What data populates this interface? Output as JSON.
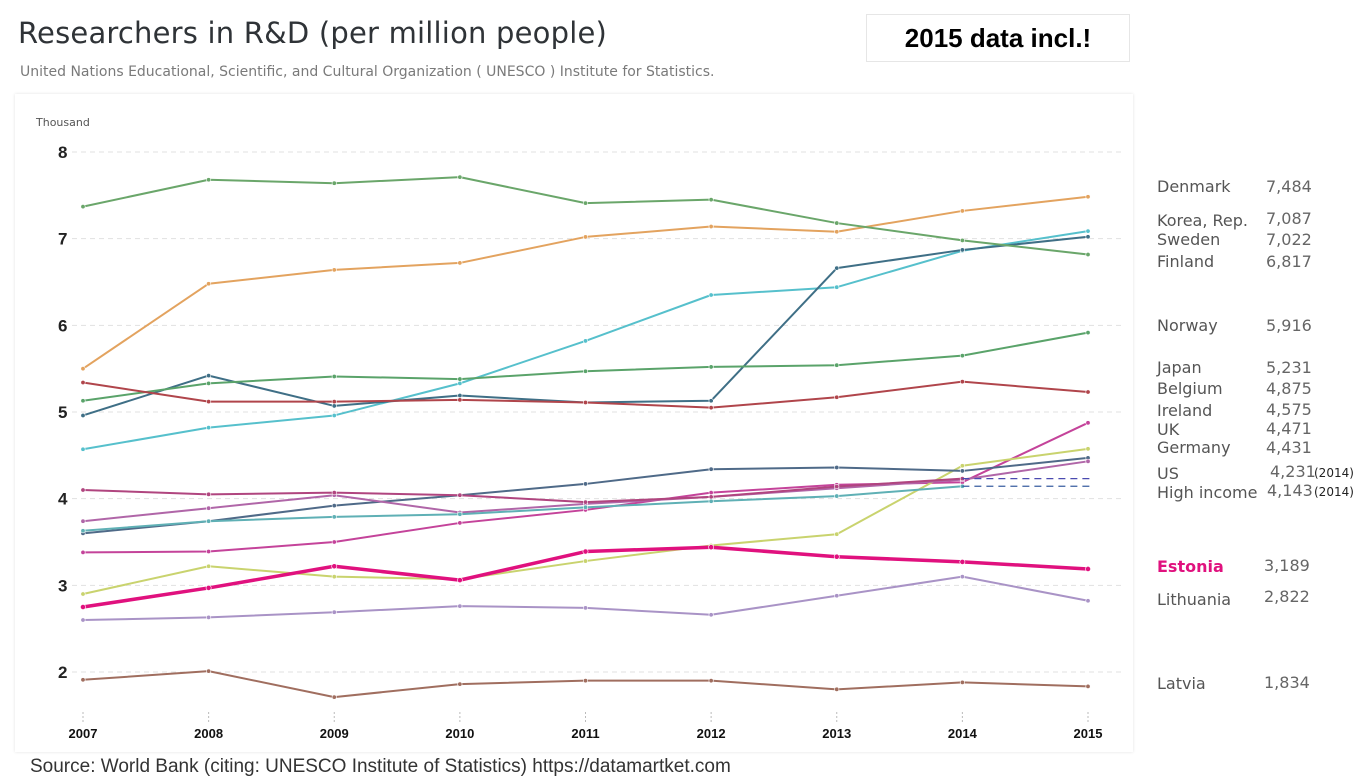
{
  "title": "Researchers in R&D (per million people)",
  "subtitle": "United Nations Educational, Scientific, and Cultural Organization ( UNESCO ) Institute for Statistics.",
  "badge": "2015 data incl.!",
  "source": "Source: World Bank (citing: UNESCO Institute of Statistics)   https://datamartket.com",
  "chart_data": {
    "type": "line",
    "ylabel": "Thousand",
    "x": [
      "2007",
      "2008",
      "2009",
      "2010",
      "2011",
      "2012",
      "2013",
      "2014",
      "2015"
    ],
    "yticks": [
      "2",
      "3",
      "4",
      "5",
      "6",
      "7",
      "8"
    ],
    "ylim": [
      1.6,
      8.2
    ],
    "grid": true,
    "series": [
      {
        "name": "Denmark",
        "label": "7,484",
        "color": "#e3a35f",
        "values": [
          5.5,
          6.48,
          6.64,
          6.72,
          7.02,
          7.14,
          7.08,
          7.32,
          7.484
        ]
      },
      {
        "name": "Korea, Rep.",
        "label": "7,087",
        "color": "#56c0cc",
        "values": [
          4.57,
          4.82,
          4.96,
          5.33,
          5.82,
          6.35,
          6.44,
          6.86,
          7.087
        ]
      },
      {
        "name": "Sweden",
        "label": "7,022",
        "color": "#3f6f86",
        "values": [
          4.96,
          5.42,
          5.07,
          5.19,
          5.11,
          5.13,
          6.66,
          6.87,
          7.022
        ]
      },
      {
        "name": "Finland",
        "label": "6,817",
        "color": "#6aa66a",
        "values": [
          7.37,
          7.68,
          7.64,
          7.71,
          7.41,
          7.45,
          7.18,
          6.98,
          6.817
        ]
      },
      {
        "name": "Norway",
        "label": "5,916",
        "color": "#5aa36a",
        "values": [
          5.13,
          5.33,
          5.41,
          5.38,
          5.47,
          5.52,
          5.54,
          5.65,
          5.916
        ]
      },
      {
        "name": "Japan",
        "label": "5,231",
        "color": "#b0454b",
        "values": [
          5.34,
          5.12,
          5.12,
          5.14,
          5.11,
          5.05,
          5.17,
          5.35,
          5.231
        ]
      },
      {
        "name": "Belgium",
        "label": "4,875",
        "color": "#c4439a",
        "values": [
          3.38,
          3.39,
          3.5,
          3.72,
          3.87,
          4.07,
          4.16,
          4.19,
          4.875
        ]
      },
      {
        "name": "Ireland",
        "label": "4,575",
        "color": "#c9d36e",
        "values": [
          2.9,
          3.22,
          3.1,
          3.07,
          3.28,
          3.46,
          3.59,
          4.38,
          4.575
        ]
      },
      {
        "name": "UK",
        "label": "4,471",
        "color": "#4f6a88",
        "values": [
          3.6,
          3.74,
          3.92,
          4.04,
          4.17,
          4.34,
          4.36,
          4.32,
          4.471
        ]
      },
      {
        "name": "Germany",
        "label": "4,431",
        "color": "#b066a8",
        "values": [
          3.74,
          3.89,
          4.04,
          3.84,
          3.94,
          4.02,
          4.12,
          4.22,
          4.431
        ]
      },
      {
        "name": "US",
        "label": "4,231",
        "note": "(2014)",
        "color": "#b0457f",
        "values": [
          4.1,
          4.05,
          4.07,
          4.04,
          3.96,
          4.02,
          4.14,
          4.231,
          null
        ]
      },
      {
        "name": "High income",
        "label": "4,143",
        "note": "(2014)",
        "color": "#5fb0b5",
        "values": [
          3.63,
          3.74,
          3.79,
          3.82,
          3.9,
          3.97,
          4.03,
          4.143,
          null
        ]
      },
      {
        "name": "Estonia",
        "label": "3,189",
        "color": "#e0117e",
        "values": [
          2.75,
          2.97,
          3.22,
          3.06,
          3.39,
          3.44,
          3.33,
          3.27,
          3.189
        ]
      },
      {
        "name": "Lithuania",
        "label": "2,822",
        "color": "#a993c6",
        "values": [
          2.6,
          2.63,
          2.69,
          2.76,
          2.74,
          2.66,
          2.88,
          3.1,
          2.822
        ]
      },
      {
        "name": "Latvia",
        "label": "1,834",
        "color": "#a06e5f",
        "values": [
          1.91,
          2.01,
          1.71,
          1.86,
          1.9,
          1.9,
          1.8,
          1.88,
          1.834
        ]
      }
    ]
  }
}
